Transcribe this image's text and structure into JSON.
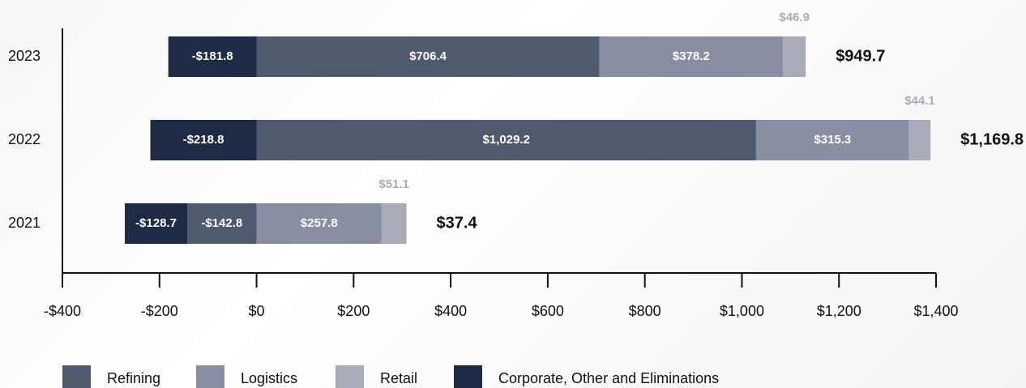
{
  "chart_data": {
    "type": "stacked-horizontal-bar",
    "categories": [
      "2023",
      "2022",
      "2021"
    ],
    "series": [
      {
        "name": "Refining",
        "color": "#4f5a6e",
        "values": [
          706.4,
          1029.2,
          -142.8
        ],
        "value_labels": [
          "$706.4",
          "$1,029.2",
          "-$142.8"
        ]
      },
      {
        "name": "Logistics",
        "color": "#8a8ea3",
        "values": [
          378.2,
          315.3,
          257.8
        ],
        "value_labels": [
          "$378.2",
          "$315.3",
          "$257.8"
        ]
      },
      {
        "name": "Retail",
        "color": "#a9abb9",
        "values": [
          46.9,
          44.1,
          51.1
        ],
        "value_labels": [
          "$46.9",
          "$44.1",
          "$51.1"
        ]
      },
      {
        "name": "Corporate, Other and Eliminations",
        "color": "#1f2b45",
        "values": [
          -181.8,
          -218.8,
          -128.7
        ],
        "value_labels": [
          "-$181.8",
          "-$218.8",
          "-$128.7"
        ]
      }
    ],
    "totals": [
      949.7,
      1169.8,
      37.4
    ],
    "total_labels": [
      "$949.7",
      "$1,169.8",
      "$37.4"
    ],
    "xlim": [
      -400,
      1400
    ],
    "xticks": [
      {
        "value": -400,
        "label": "-$400"
      },
      {
        "value": -200,
        "label": "-$200"
      },
      {
        "value": 0,
        "label": "$0"
      },
      {
        "value": 200,
        "label": "$200"
      },
      {
        "value": 400,
        "label": "$400"
      },
      {
        "value": 600,
        "label": "$600"
      },
      {
        "value": 800,
        "label": "$800"
      },
      {
        "value": 1000,
        "label": "$1,000"
      },
      {
        "value": 1200,
        "label": "$1,200"
      },
      {
        "value": 1400,
        "label": "$1,400"
      }
    ],
    "legend": "bottom"
  }
}
